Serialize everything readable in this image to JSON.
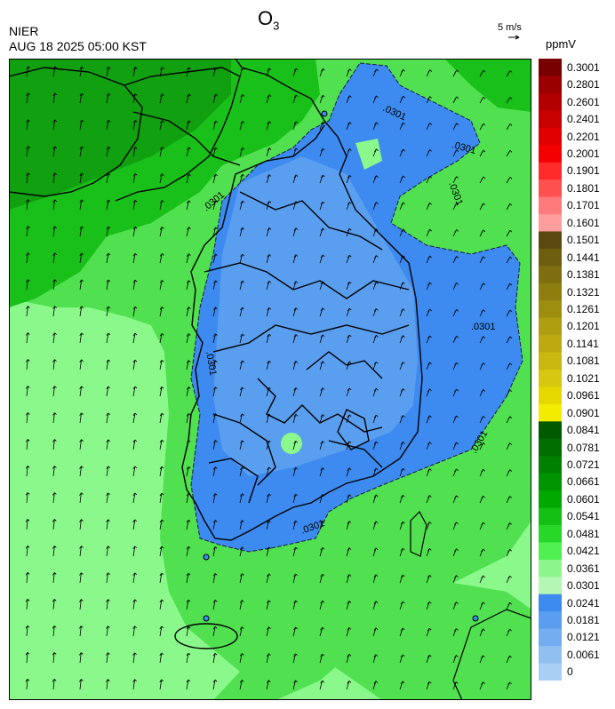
{
  "header": {
    "title_main": "O",
    "title_sub": "3",
    "agency": "NIER",
    "datetime": "AUG 18 2025 05:00 KST",
    "vector_ref_label": "5 m/s",
    "unit": "ppmV"
  },
  "map": {
    "contour_label": ".0301",
    "colors": {
      "blue_light": "#4f97ee",
      "blue_mid": "#3d8af0",
      "green_light": "#8af88a",
      "green_mid": "#50e050",
      "green_dark": "#19c019",
      "green_deep": "#10a010"
    }
  },
  "legend": {
    "bins": [
      {
        "label": "0.3001",
        "color": "#780000"
      },
      {
        "label": "0.2801",
        "color": "#9a0000"
      },
      {
        "label": "0.2601",
        "color": "#b20000"
      },
      {
        "label": "0.2401",
        "color": "#c80000"
      },
      {
        "label": "0.2201",
        "color": "#e00000"
      },
      {
        "label": "0.2001",
        "color": "#f40000"
      },
      {
        "label": "0.1901",
        "color": "#ff2a2a"
      },
      {
        "label": "0.1801",
        "color": "#ff5050"
      },
      {
        "label": "0.1701",
        "color": "#ff7a7a"
      },
      {
        "label": "0.1601",
        "color": "#ff9c9c"
      },
      {
        "label": "0.1501",
        "color": "#5a4a10"
      },
      {
        "label": "0.1441",
        "color": "#6e5e10"
      },
      {
        "label": "0.1381",
        "color": "#7e6e10"
      },
      {
        "label": "0.1321",
        "color": "#8e7e10"
      },
      {
        "label": "0.1261",
        "color": "#9e8e10"
      },
      {
        "label": "0.1201",
        "color": "#ae9e10"
      },
      {
        "label": "0.1141",
        "color": "#bcaa10"
      },
      {
        "label": "0.1081",
        "color": "#c8b810"
      },
      {
        "label": "0.1021",
        "color": "#d6c810"
      },
      {
        "label": "0.0961",
        "color": "#e4d800"
      },
      {
        "label": "0.0901",
        "color": "#f4ec00"
      },
      {
        "label": "0.0841",
        "color": "#005a00"
      },
      {
        "label": "0.0781",
        "color": "#006e00"
      },
      {
        "label": "0.0721",
        "color": "#008000"
      },
      {
        "label": "0.0661",
        "color": "#009400"
      },
      {
        "label": "0.0601",
        "color": "#00a800"
      },
      {
        "label": "0.0541",
        "color": "#14c014"
      },
      {
        "label": "0.0481",
        "color": "#28d828"
      },
      {
        "label": "0.0421",
        "color": "#50f050"
      },
      {
        "label": "0.0361",
        "color": "#8cf58c"
      },
      {
        "label": "0.0301",
        "color": "#b4f7b4"
      },
      {
        "label": "0.0241",
        "color": "#3d8af0"
      },
      {
        "label": "0.0181",
        "color": "#5a9ef0"
      },
      {
        "label": "0.0121",
        "color": "#74aef0"
      },
      {
        "label": "0.0061",
        "color": "#90c0f0"
      },
      {
        "label": "0",
        "color": "#a8d0f4"
      }
    ]
  }
}
